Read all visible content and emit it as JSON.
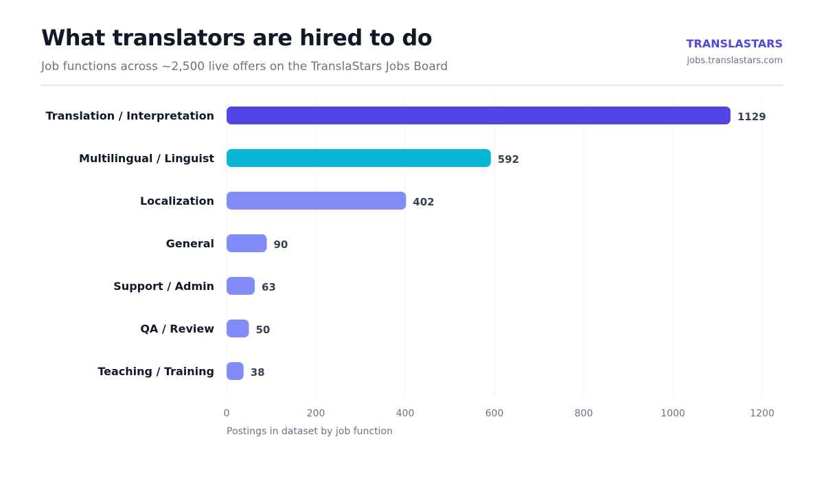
{
  "header": {
    "title": "What translators are hired to do",
    "subtitle": "Job functions across ~2,500 live offers on the TranslaStars Jobs Board",
    "brand": "TRANSLASTARS",
    "brand_url": "jobs.translastars.com"
  },
  "chart_data": {
    "type": "bar",
    "orientation": "horizontal",
    "title": "What translators are hired to do",
    "subtitle": "Job functions across ~2,500 live offers on the TranslaStars Jobs Board",
    "xlabel": "Postings in dataset by job function",
    "ylabel": "",
    "categories": [
      "Translation / Interpretation",
      "Multilingual / Linguist",
      "Localization",
      "General",
      "Support / Admin",
      "QA / Review",
      "Teaching / Training"
    ],
    "values": [
      1129,
      592,
      402,
      90,
      63,
      50,
      38
    ],
    "bar_colors": [
      "#4f46e5",
      "#06b6d4",
      "#818cf8",
      "#818cf8",
      "#818cf8",
      "#818cf8",
      "#818cf8"
    ],
    "xlim": [
      0,
      1200
    ],
    "xticks": [
      0,
      200,
      400,
      600,
      800,
      1000,
      1200
    ],
    "grid": true,
    "data_labels": true,
    "legend": "none"
  }
}
